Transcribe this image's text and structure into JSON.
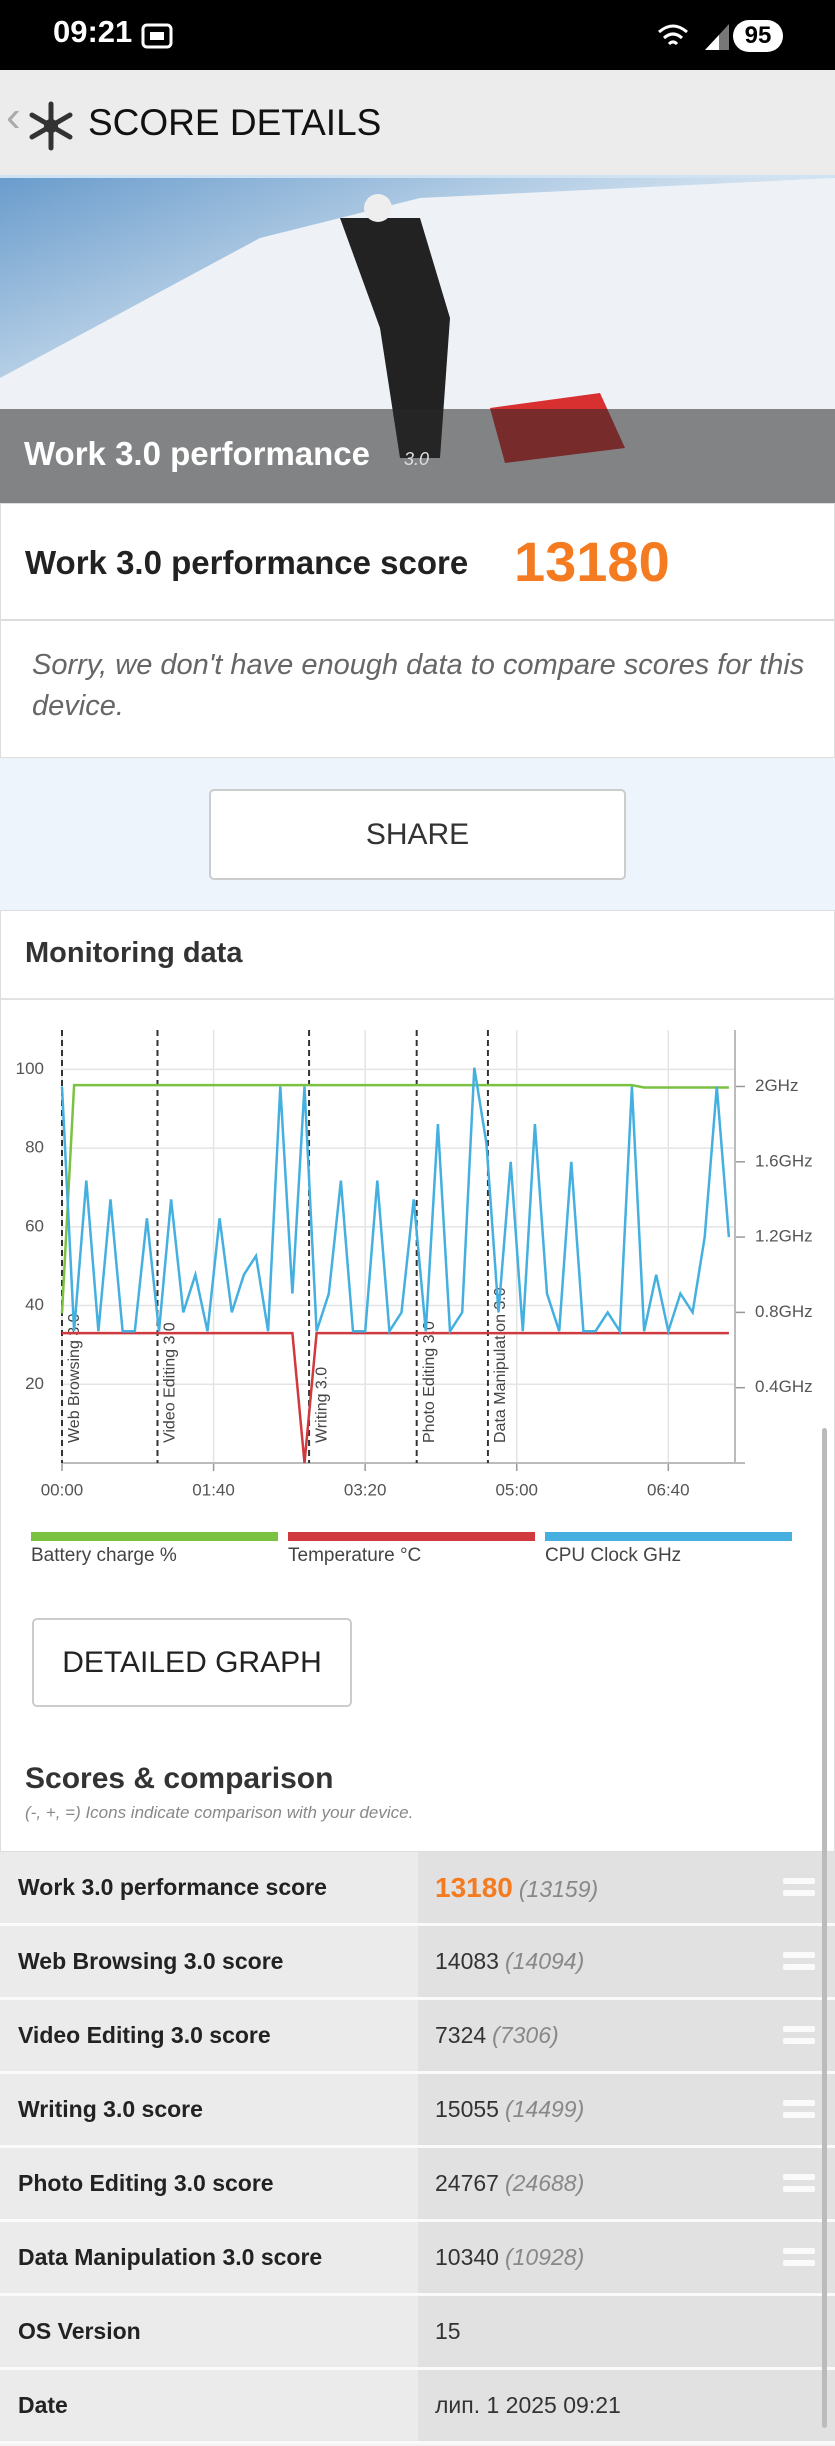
{
  "status_bar": {
    "time": "09:21",
    "battery": "95"
  },
  "header": {
    "title": "SCORE DETAILS"
  },
  "hero": {
    "title": "Work 3.0 performance",
    "version": "3.0"
  },
  "score": {
    "label": "Work 3.0 performance score",
    "value": "13180"
  },
  "notice": "Sorry, we don't have enough data to compare scores for this device.",
  "share_button": "SHARE",
  "monitoring": {
    "title": "Monitoring data",
    "detailed_graph_button": "DETAILED GRAPH"
  },
  "chart_data": {
    "type": "line",
    "x": [
      0,
      8,
      16,
      24,
      32,
      40,
      48,
      56,
      64,
      72,
      80,
      88,
      96,
      104,
      112,
      120,
      128,
      136,
      144,
      152,
      160,
      168,
      176,
      184,
      192,
      200,
      208,
      216,
      224,
      232,
      240,
      248,
      256,
      264,
      272,
      280,
      288,
      296,
      304,
      312,
      320,
      328,
      336,
      344,
      352,
      360,
      368,
      376,
      384,
      392,
      400,
      408,
      416,
      424,
      432,
      440
    ],
    "xlim": [
      0,
      444
    ],
    "xticks": [
      {
        "value": 0,
        "label": "00:00"
      },
      {
        "value": 100,
        "label": "01:40"
      },
      {
        "value": 200,
        "label": "03:20"
      },
      {
        "value": 300,
        "label": "05:00"
      },
      {
        "value": 400,
        "label": "06:40"
      }
    ],
    "ylim": [
      0,
      110
    ],
    "yticks": [
      20,
      40,
      60,
      80,
      100
    ],
    "y2lim": [
      0,
      2.3
    ],
    "y2ticks": [
      {
        "value": 0.4,
        "label": "0.4GHz"
      },
      {
        "value": 0.8,
        "label": "0.8GHz"
      },
      {
        "value": 1.2,
        "label": "1.2GHz"
      },
      {
        "value": 1.6,
        "label": "1.6GHz"
      },
      {
        "value": 2,
        "label": "2GHz"
      }
    ],
    "grid": true,
    "annotations": [
      {
        "x": 0,
        "label": "Web Browsing 3.0"
      },
      {
        "x": 63,
        "label": "Video Editing 3.0"
      },
      {
        "x": 163,
        "label": "Writing 3.0"
      },
      {
        "x": 234,
        "label": "Photo Editing 3.0"
      },
      {
        "x": 281,
        "label": "Data Manipulation 3.0"
      }
    ],
    "series": [
      {
        "name": "Battery charge %",
        "color": "#7cc242",
        "values": [
          38,
          96,
          96,
          96,
          96,
          96,
          96,
          96,
          96,
          96,
          96,
          96,
          96,
          96,
          96,
          96,
          96,
          96,
          96,
          96,
          96,
          96,
          96,
          96,
          96,
          96,
          96,
          96,
          96,
          96,
          96,
          96,
          96,
          96,
          96,
          96,
          96,
          96,
          96,
          96,
          96,
          96,
          96,
          96,
          96,
          96,
          96,
          96,
          95.4,
          95.4,
          95.4,
          95.4,
          95.4,
          95.4,
          95.4,
          95.4
        ]
      },
      {
        "name": "Temperature °C",
        "color": "#d0393e",
        "values": [
          33,
          33,
          33,
          33,
          33,
          33,
          33,
          33,
          33,
          33,
          33,
          33,
          33,
          33,
          33,
          33,
          33,
          33,
          33,
          33,
          0,
          33,
          33,
          33,
          33,
          33,
          33,
          33,
          33,
          33,
          33,
          33,
          33,
          33,
          33,
          33,
          33,
          33,
          33,
          33,
          33,
          33,
          33,
          33,
          33,
          33,
          33,
          33,
          33,
          33,
          33,
          33,
          33,
          33,
          33,
          33
        ]
      },
      {
        "name": "CPU Clock GHz",
        "color": "#45b0e0",
        "axis": "y2",
        "values": [
          2.0,
          0.7,
          1.5,
          0.7,
          1.4,
          0.7,
          0.7,
          1.3,
          0.7,
          1.4,
          0.8,
          1.0,
          0.7,
          1.3,
          0.8,
          1.0,
          1.1,
          0.7,
          2.0,
          0.9,
          2.0,
          0.7,
          0.9,
          1.5,
          0.7,
          0.7,
          1.5,
          0.7,
          0.8,
          1.4,
          0.7,
          1.8,
          0.7,
          0.8,
          2.1,
          1.7,
          0.8,
          1.6,
          0.7,
          1.8,
          0.9,
          0.7,
          1.6,
          0.7,
          0.7,
          0.8,
          0.7,
          2.0,
          0.7,
          1.0,
          0.7,
          0.9,
          0.8,
          1.2,
          2.0,
          1.2
        ]
      }
    ]
  },
  "scores": {
    "title": "Scores & comparison",
    "subtitle": "(-, +, =) Icons indicate comparison with your device.",
    "rows": [
      [
        "Work 3.0 performance score",
        "13180",
        "(13159)"
      ],
      [
        "Web Browsing 3.0 score",
        "14083",
        "(14094)"
      ],
      [
        "Video Editing 3.0 score",
        "7324",
        "(7306)"
      ],
      [
        "Writing 3.0 score",
        "15055",
        "(14499)"
      ],
      [
        "Photo Editing 3.0 score",
        "24767",
        "(24688)"
      ],
      [
        "Data Manipulation 3.0 score",
        "10340",
        "(10928)"
      ],
      [
        "OS Version",
        "15"
      ],
      [
        "Date",
        "лип. 1 2025 09:21"
      ]
    ]
  }
}
